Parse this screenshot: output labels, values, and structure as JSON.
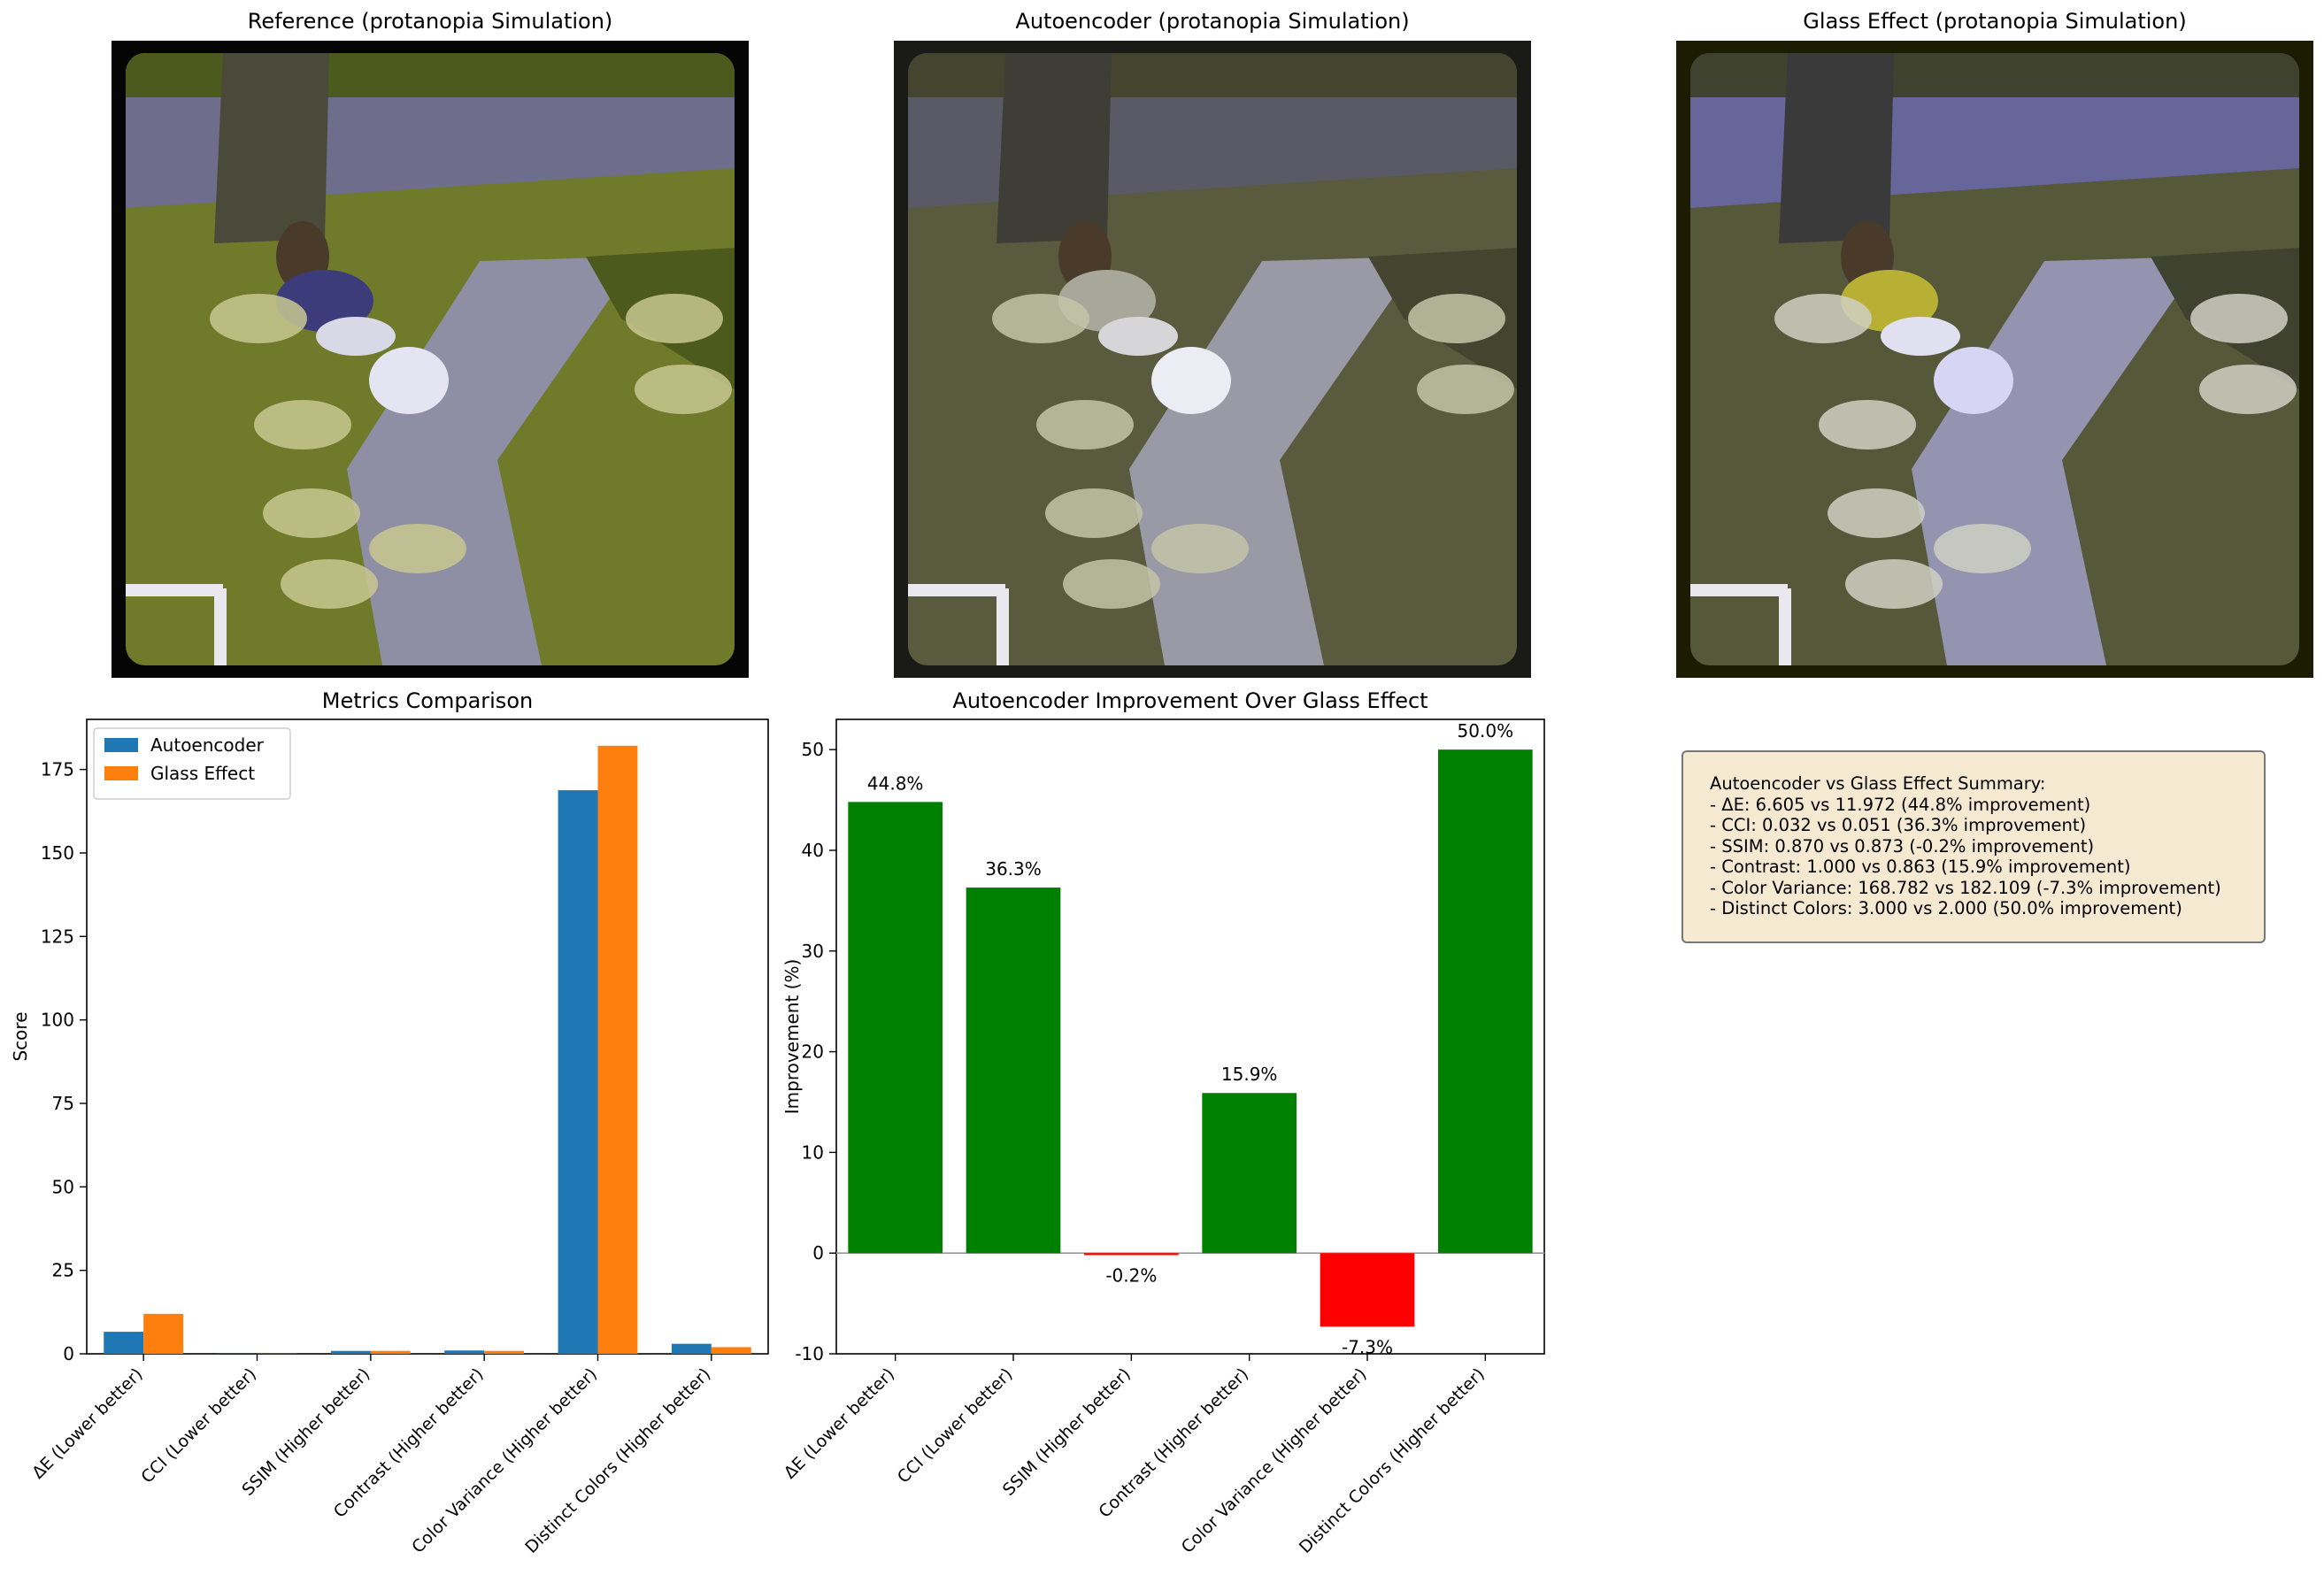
{
  "panels": [
    {
      "title": "Reference (protanopia Simulation)",
      "tint": "reference"
    },
    {
      "title": "Autoencoder (protanopia Simulation)",
      "tint": "autoencoder"
    },
    {
      "title": "Glass Effect (protanopia Simulation)",
      "tint": "glass"
    }
  ],
  "chart_data": [
    {
      "type": "bar",
      "title": "Metrics Comparison",
      "xlabel": "",
      "ylabel": "Score",
      "categories": [
        "ΔE (Lower better)",
        "CCI (Lower better)",
        "SSIM (Higher better)",
        "Contrast (Higher better)",
        "Color Variance (Higher better)",
        "Distinct Colors (Higher better)"
      ],
      "series": [
        {
          "name": "Autoencoder",
          "color": "#1f77b4",
          "values": [
            6.605,
            0.032,
            0.87,
            1.0,
            168.782,
            3.0
          ]
        },
        {
          "name": "Glass Effect",
          "color": "#ff7f0e",
          "values": [
            11.972,
            0.051,
            0.873,
            0.863,
            182.109,
            2.0
          ]
        }
      ],
      "ylim": [
        0,
        190
      ],
      "yticks": [
        0,
        25,
        50,
        75,
        100,
        125,
        150,
        175
      ],
      "legend": "top-left",
      "grid": false
    },
    {
      "type": "bar",
      "title": "Autoencoder Improvement Over Glass Effect",
      "xlabel": "",
      "ylabel": "Improvement (%)",
      "categories": [
        "ΔE (Lower better)",
        "CCI (Lower better)",
        "SSIM (Higher better)",
        "Contrast (Higher better)",
        "Color Variance (Higher better)",
        "Distinct Colors (Higher better)"
      ],
      "values": [
        44.8,
        36.3,
        -0.2,
        15.9,
        -7.3,
        50.0
      ],
      "labels": [
        "44.8%",
        "36.3%",
        "-0.2%",
        "15.9%",
        "-7.3%",
        "50.0%"
      ],
      "positive_color": "#008000",
      "negative_color": "#ff0000",
      "ylim": [
        -10,
        53
      ],
      "yticks": [
        -10,
        0,
        10,
        20,
        30,
        40,
        50
      ],
      "zero_line": true,
      "grid": false
    }
  ],
  "summary": {
    "heading": "Autoencoder vs Glass Effect Summary:",
    "lines": [
      "- ΔE: 6.605 vs 11.972 (44.8% improvement)",
      "- CCI: 0.032 vs 0.051 (36.3% improvement)",
      "- SSIM: 0.870 vs 0.873 (-0.2% improvement)",
      "- Contrast: 1.000 vs 0.863 (15.9% improvement)",
      "- Color Variance: 168.782 vs 182.109 (-7.3% improvement)",
      "- Distinct Colors: 3.000 vs 2.000 (50.0% improvement)"
    ]
  }
}
